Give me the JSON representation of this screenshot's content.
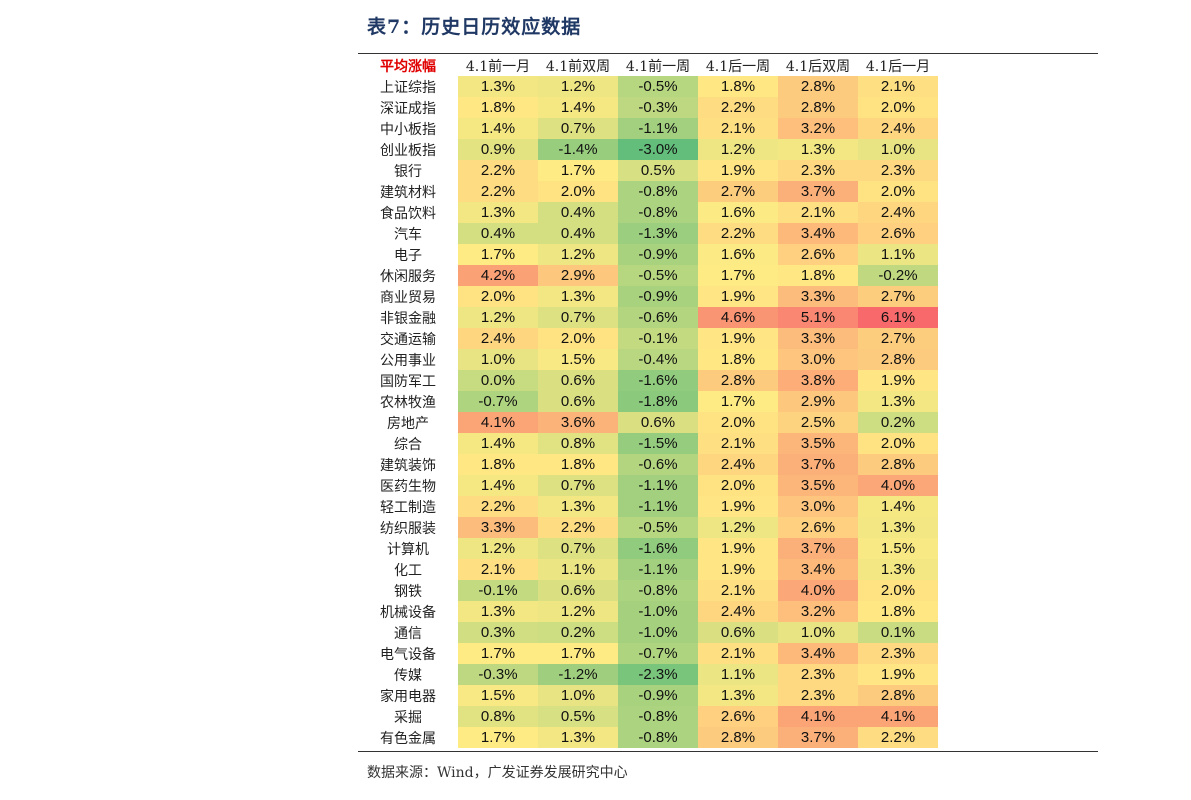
{
  "title": "表7：历史日历效应数据",
  "source": "数据来源：Wind，广发证券发展研究中心",
  "table": {
    "headers": [
      "平均涨幅",
      "4.1前一月",
      "4.1前双周",
      "4.1前一周",
      "4.1后一周",
      "4.1后双周",
      "4.1后一月"
    ],
    "rows": [
      {
        "name": "上证综指",
        "values": [
          1.3,
          1.2,
          -0.5,
          1.8,
          2.8,
          2.1
        ]
      },
      {
        "name": "深证成指",
        "values": [
          1.8,
          1.4,
          -0.3,
          2.2,
          2.8,
          2.0
        ]
      },
      {
        "name": "中小板指",
        "values": [
          1.4,
          0.7,
          -1.1,
          2.1,
          3.2,
          2.4
        ]
      },
      {
        "name": "创业板指",
        "values": [
          0.9,
          -1.4,
          -3.0,
          1.2,
          1.3,
          1.0
        ]
      },
      {
        "name": "银行",
        "values": [
          2.2,
          1.7,
          0.5,
          1.9,
          2.3,
          2.3
        ]
      },
      {
        "name": "建筑材料",
        "values": [
          2.2,
          2.0,
          -0.8,
          2.7,
          3.7,
          2.0
        ]
      },
      {
        "name": "食品饮料",
        "values": [
          1.3,
          0.4,
          -0.8,
          1.6,
          2.1,
          2.4
        ]
      },
      {
        "name": "汽车",
        "values": [
          0.4,
          0.4,
          -1.3,
          2.2,
          3.4,
          2.6
        ]
      },
      {
        "name": "电子",
        "values": [
          1.7,
          1.2,
          -0.9,
          1.6,
          2.6,
          1.1
        ]
      },
      {
        "name": "休闲服务",
        "values": [
          4.2,
          2.9,
          -0.5,
          1.7,
          1.8,
          -0.2
        ]
      },
      {
        "name": "商业贸易",
        "values": [
          2.0,
          1.3,
          -0.9,
          1.9,
          3.3,
          2.7
        ]
      },
      {
        "name": "非银金融",
        "values": [
          1.2,
          0.7,
          -0.6,
          4.6,
          5.1,
          6.1
        ]
      },
      {
        "name": "交通运输",
        "values": [
          2.4,
          2.0,
          -0.1,
          1.9,
          3.3,
          2.7
        ]
      },
      {
        "name": "公用事业",
        "values": [
          1.0,
          1.5,
          -0.4,
          1.8,
          3.0,
          2.8
        ]
      },
      {
        "name": "国防军工",
        "values": [
          0.0,
          0.6,
          -1.6,
          2.8,
          3.8,
          1.9
        ]
      },
      {
        "name": "农林牧渔",
        "values": [
          -0.7,
          0.6,
          -1.8,
          1.7,
          2.9,
          1.3
        ]
      },
      {
        "name": "房地产",
        "values": [
          4.1,
          3.6,
          0.6,
          2.0,
          2.5,
          0.2
        ]
      },
      {
        "name": "综合",
        "values": [
          1.4,
          0.8,
          -1.5,
          2.1,
          3.5,
          2.0
        ]
      },
      {
        "name": "建筑装饰",
        "values": [
          1.8,
          1.8,
          -0.6,
          2.4,
          3.7,
          2.8
        ]
      },
      {
        "name": "医药生物",
        "values": [
          1.4,
          0.7,
          -1.1,
          2.0,
          3.5,
          4.0
        ]
      },
      {
        "name": "轻工制造",
        "values": [
          2.2,
          1.3,
          -1.1,
          1.9,
          3.0,
          1.4
        ]
      },
      {
        "name": "纺织服装",
        "values": [
          3.3,
          2.2,
          -0.5,
          1.2,
          2.6,
          1.3
        ]
      },
      {
        "name": "计算机",
        "values": [
          1.2,
          0.7,
          -1.6,
          1.9,
          3.7,
          1.5
        ]
      },
      {
        "name": "化工",
        "values": [
          2.1,
          1.1,
          -1.1,
          1.9,
          3.4,
          1.3
        ]
      },
      {
        "name": "钢铁",
        "values": [
          -0.1,
          0.6,
          -0.8,
          2.1,
          4.0,
          2.0
        ]
      },
      {
        "name": "机械设备",
        "values": [
          1.3,
          1.2,
          -1.0,
          2.4,
          3.2,
          1.8
        ]
      },
      {
        "name": "通信",
        "values": [
          0.3,
          0.2,
          -1.0,
          0.6,
          1.0,
          0.1
        ]
      },
      {
        "name": "电气设备",
        "values": [
          1.7,
          1.7,
          -0.7,
          2.1,
          3.4,
          2.3
        ]
      },
      {
        "name": "传媒",
        "values": [
          -0.3,
          -1.2,
          -2.3,
          1.1,
          2.3,
          1.9
        ]
      },
      {
        "name": "家用电器",
        "values": [
          1.5,
          1.0,
          -0.9,
          1.3,
          2.3,
          2.8
        ]
      },
      {
        "name": "采掘",
        "values": [
          0.8,
          0.5,
          -0.8,
          2.6,
          4.1,
          4.1
        ]
      },
      {
        "name": "有色金属",
        "values": [
          1.7,
          1.3,
          -0.8,
          2.8,
          3.7,
          2.2
        ]
      }
    ]
  },
  "colors": {
    "heat_low": "#63be7b",
    "heat_mid": "#ffeb84",
    "heat_high": "#f8696b",
    "header_accent": "#e00000",
    "title": "#1f3864"
  }
}
